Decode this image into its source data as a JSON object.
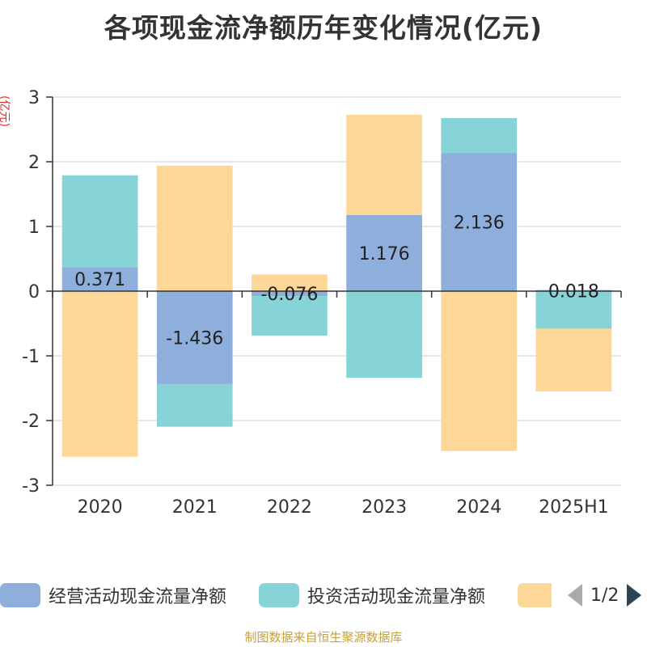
{
  "title": "各项现金流净额历年变化情况(亿元)",
  "y_unit": "(亿元)",
  "source": "制图数据来自恒生聚源数据库",
  "legend": {
    "items": [
      {
        "label": "经营活动现金流量净额",
        "color": "#8eaedb"
      },
      {
        "label": "投资活动现金流量净额",
        "color": "#86d4d8"
      },
      {
        "label": "",
        "color": "#fdd797"
      }
    ],
    "pager": "1/2"
  },
  "chart_data": {
    "type": "bar",
    "stacked": true,
    "categories": [
      "2020",
      "2021",
      "2022",
      "2023",
      "2024",
      "2025H1"
    ],
    "ylim": [
      -3,
      3
    ],
    "yticks": [
      3,
      2,
      1,
      0,
      -1,
      -2,
      -3
    ],
    "grid": true,
    "legend_position": "bottom",
    "series": [
      {
        "name": "经营活动现金流量净额",
        "color": "#8eaedb",
        "values": [
          0.371,
          -1.436,
          -0.076,
          1.176,
          2.136,
          0.018
        ],
        "labels": [
          "0.371",
          "-1.436",
          "-0.076",
          "1.176",
          "2.136",
          "0.018"
        ]
      },
      {
        "name": "投资活动现金流量净额",
        "color": "#86d4d8",
        "values": [
          1.42,
          -0.66,
          -0.61,
          -1.34,
          0.54,
          -0.58
        ]
      },
      {
        "color": "#fdd797",
        "values": [
          -2.56,
          1.94,
          0.26,
          1.55,
          -2.47,
          -0.97
        ]
      }
    ]
  }
}
